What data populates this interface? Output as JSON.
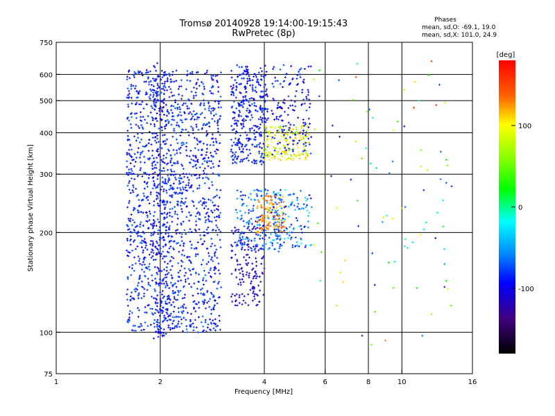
{
  "chart_data": {
    "type": "scatter",
    "title": "Tromsø 20140928 19:14:00-19:15:43",
    "subtitle": "RwPretec (8p)",
    "info": {
      "heading": "Phases",
      "line1": "mean, sd,O: -69.1, 19.0",
      "line2": "mean, sd,X: 101.0, 24.9"
    },
    "xlabel": "Frequency [MHz]",
    "ylabel": "Stationary phase Virtual Height [km]",
    "x_scale": "log2",
    "y_scale": "log",
    "xlim": [
      1,
      16
    ],
    "ylim": [
      75,
      750
    ],
    "x_ticks": [
      1,
      2,
      4,
      6,
      8,
      10,
      16
    ],
    "y_ticks": [
      75,
      100,
      200,
      300,
      400,
      500,
      600,
      750
    ],
    "x_grid": [
      2,
      4,
      6,
      8,
      10
    ],
    "y_grid": [
      100,
      200,
      300,
      400,
      500,
      600
    ],
    "colorbar": {
      "label": "[deg]",
      "range": [
        -180,
        180
      ],
      "ticks": [
        100,
        0,
        -100
      ]
    },
    "clusters": [
      {
        "x": [
          1.6,
          3.0
        ],
        "y": [
          100,
          620
        ],
        "phase": [
          -110,
          -65
        ],
        "count": 1500
      },
      {
        "x": [
          1.9,
          2.1
        ],
        "y": [
          95,
          650
        ],
        "phase": [
          -115,
          -80
        ],
        "count": 200
      },
      {
        "x": [
          3.2,
          4.1
        ],
        "y": [
          320,
          640
        ],
        "phase": [
          -110,
          -70
        ],
        "count": 350
      },
      {
        "x": [
          3.2,
          4.0
        ],
        "y": [
          120,
          210
        ],
        "phase": [
          -125,
          -95
        ],
        "count": 160
      },
      {
        "x": [
          3.3,
          4.5
        ],
        "y": [
          175,
          270
        ],
        "phase": [
          -90,
          -40
        ],
        "count": 160
      },
      {
        "x": [
          3.8,
          4.6
        ],
        "y": [
          200,
          260
        ],
        "phase": [
          105,
          150
        ],
        "count": 120
      },
      {
        "x": [
          4.0,
          5.4
        ],
        "y": [
          330,
          420
        ],
        "phase": [
          60,
          120
        ],
        "count": 170
      },
      {
        "x": [
          4.2,
          5.5
        ],
        "y": [
          180,
          270
        ],
        "phase": [
          -100,
          -10
        ],
        "count": 120
      },
      {
        "x": [
          4.2,
          5.5
        ],
        "y": [
          340,
          640
        ],
        "phase": [
          -120,
          -70
        ],
        "count": 150
      },
      {
        "x": [
          5.5,
          14.0
        ],
        "y": [
          90,
          660
        ],
        "phase": [
          -130,
          160
        ],
        "count": 90
      }
    ]
  }
}
